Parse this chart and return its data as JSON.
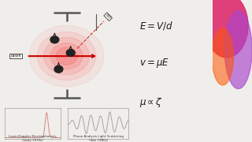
{
  "bg_color": "#f0eeea",
  "right_panel_color": "#111111",
  "equations": [
    "$E = V/d$",
    "$v = \\mu E$",
    "$\\mu \\propto \\zeta$"
  ],
  "label1": "Laser-Doppler Electrophoresis\n(early 1970s)",
  "label2": "Phase Analysis Light Scattering\n(late 1980s)",
  "glow_color": "#ff2222",
  "arrow_color": "#cc0000",
  "dashed_color": "#cc3333",
  "electrode_color": "#555555",
  "particle_color": "#222222"
}
